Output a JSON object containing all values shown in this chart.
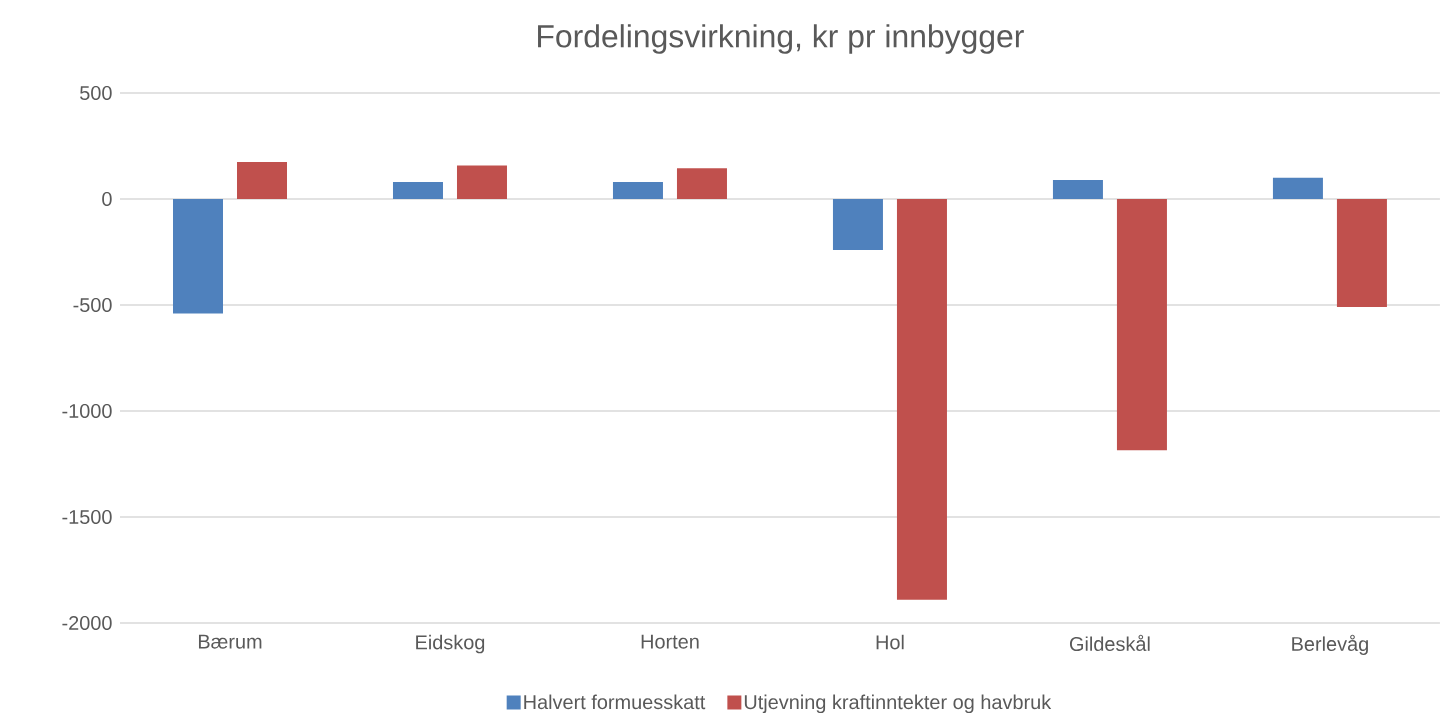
{
  "chart_data": {
    "type": "bar",
    "title": "Fordelingsvirkning, kr pr innbygger",
    "categories": [
      "Bærum",
      "Eidskog",
      "Horten",
      "Hol",
      "Gildeskål",
      "Berlevåg"
    ],
    "series": [
      {
        "name": "Halvert formuesskatt",
        "color": "#4f81bd",
        "values": [
          -540,
          80,
          80,
          -240,
          90,
          100
        ]
      },
      {
        "name": "Utjevning kraftinntekter og havbruk",
        "color": "#c0504d",
        "values": [
          175,
          158,
          145,
          -1890,
          -1185,
          -510
        ]
      }
    ],
    "ylim": [
      -2000,
      500
    ],
    "yticks": [
      -2000,
      -1500,
      -1000,
      -500,
      0,
      500
    ],
    "grid": "y",
    "legend": "bottom"
  }
}
